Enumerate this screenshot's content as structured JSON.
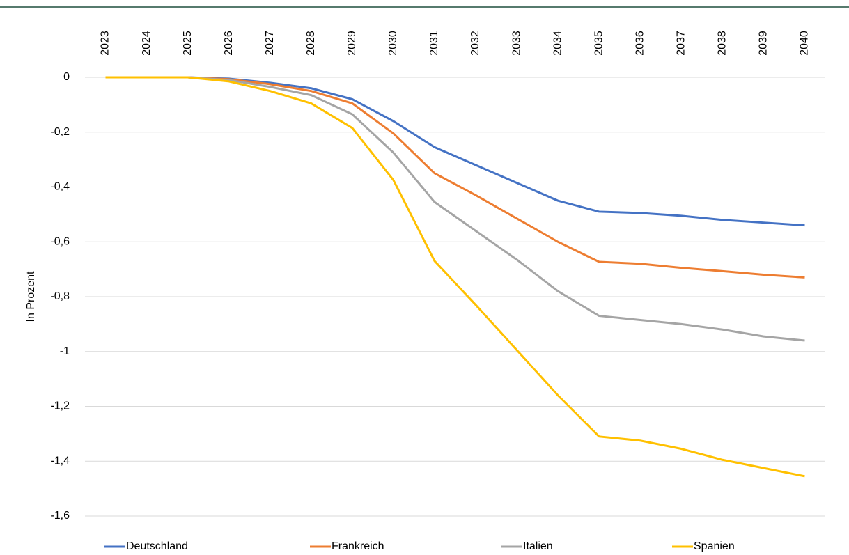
{
  "chart_data": {
    "type": "line",
    "y_label": "In Prozent",
    "categories": [
      "2023",
      "2024",
      "2025",
      "2026",
      "2027",
      "2028",
      "2029",
      "2030",
      "2031",
      "2032",
      "2033",
      "2034",
      "2035",
      "2036",
      "2037",
      "2038",
      "2039",
      "2040"
    ],
    "series": [
      {
        "name": "Deutschland",
        "color": "#4472c4",
        "values": [
          0,
          0,
          0,
          -0.005,
          -0.02,
          -0.04,
          -0.08,
          -0.16,
          -0.255,
          -0.32,
          -0.385,
          -0.45,
          -0.49,
          -0.495,
          -0.505,
          -0.52,
          -0.53,
          -0.54
        ]
      },
      {
        "name": "Frankreich",
        "color": "#ed7d31",
        "values": [
          0,
          0,
          0,
          -0.007,
          -0.025,
          -0.05,
          -0.095,
          -0.205,
          -0.35,
          -0.43,
          -0.515,
          -0.6,
          -0.673,
          -0.68,
          -0.695,
          -0.707,
          -0.72,
          -0.73
        ]
      },
      {
        "name": "Italien",
        "color": "#a5a5a5",
        "values": [
          0,
          0,
          0,
          -0.01,
          -0.035,
          -0.065,
          -0.135,
          -0.275,
          -0.455,
          -0.56,
          -0.665,
          -0.78,
          -0.87,
          -0.885,
          -0.9,
          -0.92,
          -0.945,
          -0.96
        ]
      },
      {
        "name": "Spanien",
        "color": "#ffc000",
        "values": [
          0,
          0,
          0,
          -0.015,
          -0.05,
          -0.095,
          -0.185,
          -0.375,
          -0.67,
          -0.83,
          -0.995,
          -1.16,
          -1.31,
          -1.325,
          -1.355,
          -1.395,
          -1.425,
          -1.455
        ]
      }
    ],
    "ylim": [
      -1.6,
      0
    ],
    "yticks": [
      0,
      {
        "value": -0.2,
        "label": "-0,2"
      },
      {
        "value": -0.4,
        "label": "-0,4"
      },
      {
        "value": -0.6,
        "label": "-0,6"
      },
      {
        "value": -0.8,
        "label": "-0,8"
      },
      -1,
      {
        "value": -1.2,
        "label": "-1,2"
      },
      {
        "value": -1.4,
        "label": "-1,4"
      },
      {
        "value": -1.6,
        "label": "-1,6"
      }
    ],
    "grid": true,
    "legend": "bottom"
  }
}
